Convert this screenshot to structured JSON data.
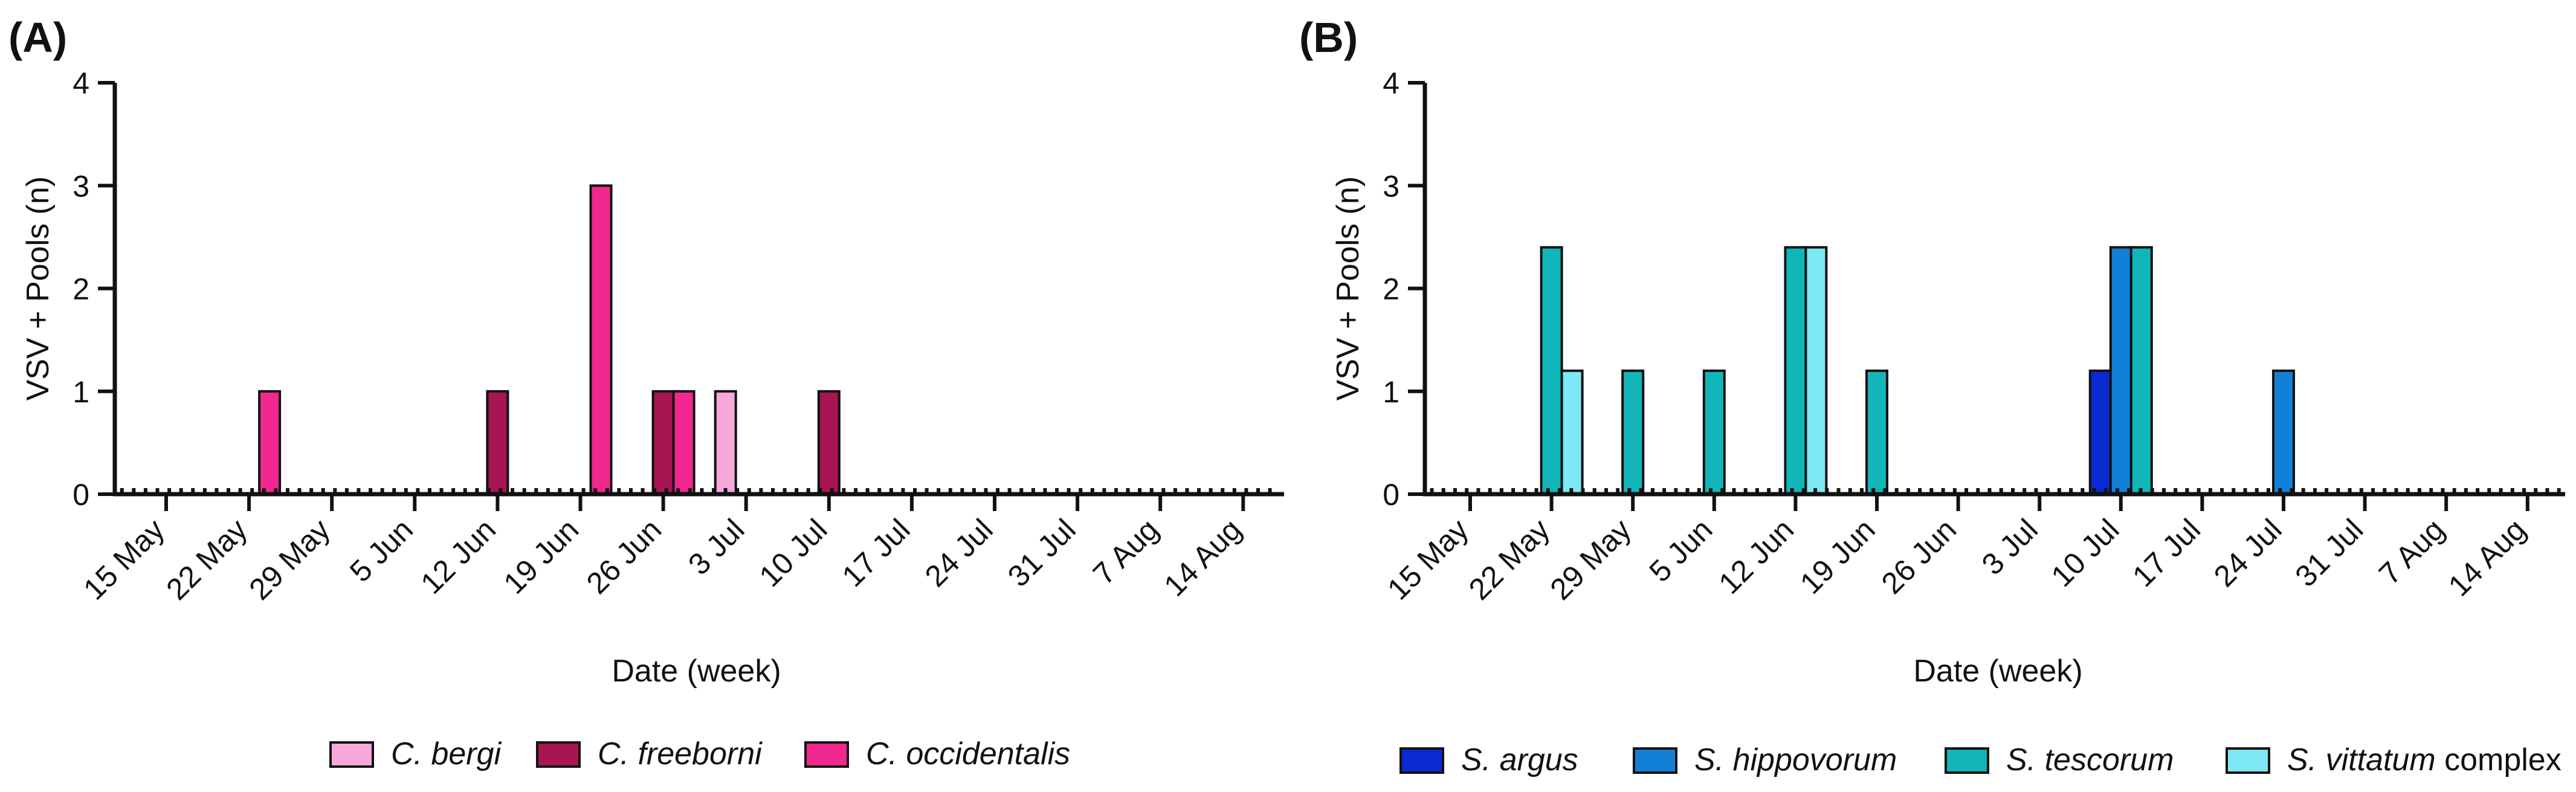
{
  "chart_data": [
    {
      "type": "bar",
      "panel_label": "(A)",
      "xlabel": "Date (week)",
      "ylabel": "VSV + Pools (n)",
      "ylim": [
        0,
        4
      ],
      "yticks": [
        "0",
        "1",
        "2",
        "3",
        "4"
      ],
      "grid": false,
      "legend_position": "bottom",
      "categories": [
        "15 May",
        "22 May",
        "29 May",
        "5 Jun",
        "12 Jun",
        "19 Jun",
        "26 Jun",
        "3 Jul",
        "10 Jul",
        "17 Jul",
        "24 Jul",
        "31 Jul",
        "7 Aug",
        "14 Aug"
      ],
      "series": [
        {
          "name": "C. bergi",
          "color": "#f7a8da",
          "italic": true,
          "suffix": "",
          "points": [
            {
              "x": "3 Jul",
              "offset": -1,
              "y": 1
            }
          ]
        },
        {
          "name": "C. freeborni",
          "color": "#a91452",
          "italic": true,
          "suffix": "",
          "points": [
            {
              "x": "12 Jun",
              "offset": 0,
              "y": 1
            },
            {
              "x": "26 Jun",
              "offset": 0,
              "y": 1
            },
            {
              "x": "10 Jul",
              "offset": 0,
              "y": 1
            }
          ]
        },
        {
          "name": "C. occidentalis",
          "color": "#f0288f",
          "italic": true,
          "suffix": "",
          "points": [
            {
              "x": "22 May",
              "offset": 1,
              "y": 1
            },
            {
              "x": "19 Jun",
              "offset": 1,
              "y": 3
            },
            {
              "x": "26 Jun",
              "offset": 1,
              "y": 1
            }
          ]
        }
      ]
    },
    {
      "type": "bar",
      "panel_label": "(B)",
      "xlabel": "Date (week)",
      "ylabel": "VSV + Pools (n)",
      "ylim": [
        0,
        4
      ],
      "yticks": [
        "0",
        "1",
        "2",
        "3",
        "4"
      ],
      "grid": false,
      "legend_position": "bottom",
      "categories": [
        "15 May",
        "22 May",
        "29 May",
        "5 Jun",
        "12 Jun",
        "19 Jun",
        "26 Jun",
        "3 Jul",
        "10 Jul",
        "17 Jul",
        "24 Jul",
        "31 Jul",
        "7 Aug",
        "14 Aug"
      ],
      "series": [
        {
          "name": "S. argus",
          "color": "#0a2bd1",
          "italic": true,
          "suffix": "",
          "points": [
            {
              "x": "10 Jul",
              "offset": -1,
              "y": 1.2
            }
          ]
        },
        {
          "name": "S. hippovorum",
          "color": "#1380d8",
          "italic": true,
          "suffix": "",
          "points": [
            {
              "x": "10 Jul",
              "offset": 0,
              "y": 2.4
            },
            {
              "x": "24 Jul",
              "offset": 0,
              "y": 1.2
            }
          ]
        },
        {
          "name": "S. tescorum",
          "color": "#12b5b8",
          "italic": true,
          "suffix": "",
          "points": [
            {
              "x": "22 May",
              "offset": 0,
              "y": 2.4
            },
            {
              "x": "29 May",
              "offset": 0,
              "y": 1.2
            },
            {
              "x": "5 Jun",
              "offset": 0,
              "y": 1.2
            },
            {
              "x": "12 Jun",
              "offset": 0,
              "y": 2.4
            },
            {
              "x": "19 Jun",
              "offset": 0,
              "y": 1.2
            },
            {
              "x": "10 Jul",
              "offset": 1,
              "y": 2.4
            }
          ]
        },
        {
          "name": "S. vittatum",
          "color": "#7ee8f5",
          "italic": true,
          "suffix": " complex",
          "points": [
            {
              "x": "22 May",
              "offset": 1,
              "y": 1.2
            },
            {
              "x": "12 Jun",
              "offset": 1,
              "y": 2.4
            }
          ]
        }
      ]
    }
  ]
}
